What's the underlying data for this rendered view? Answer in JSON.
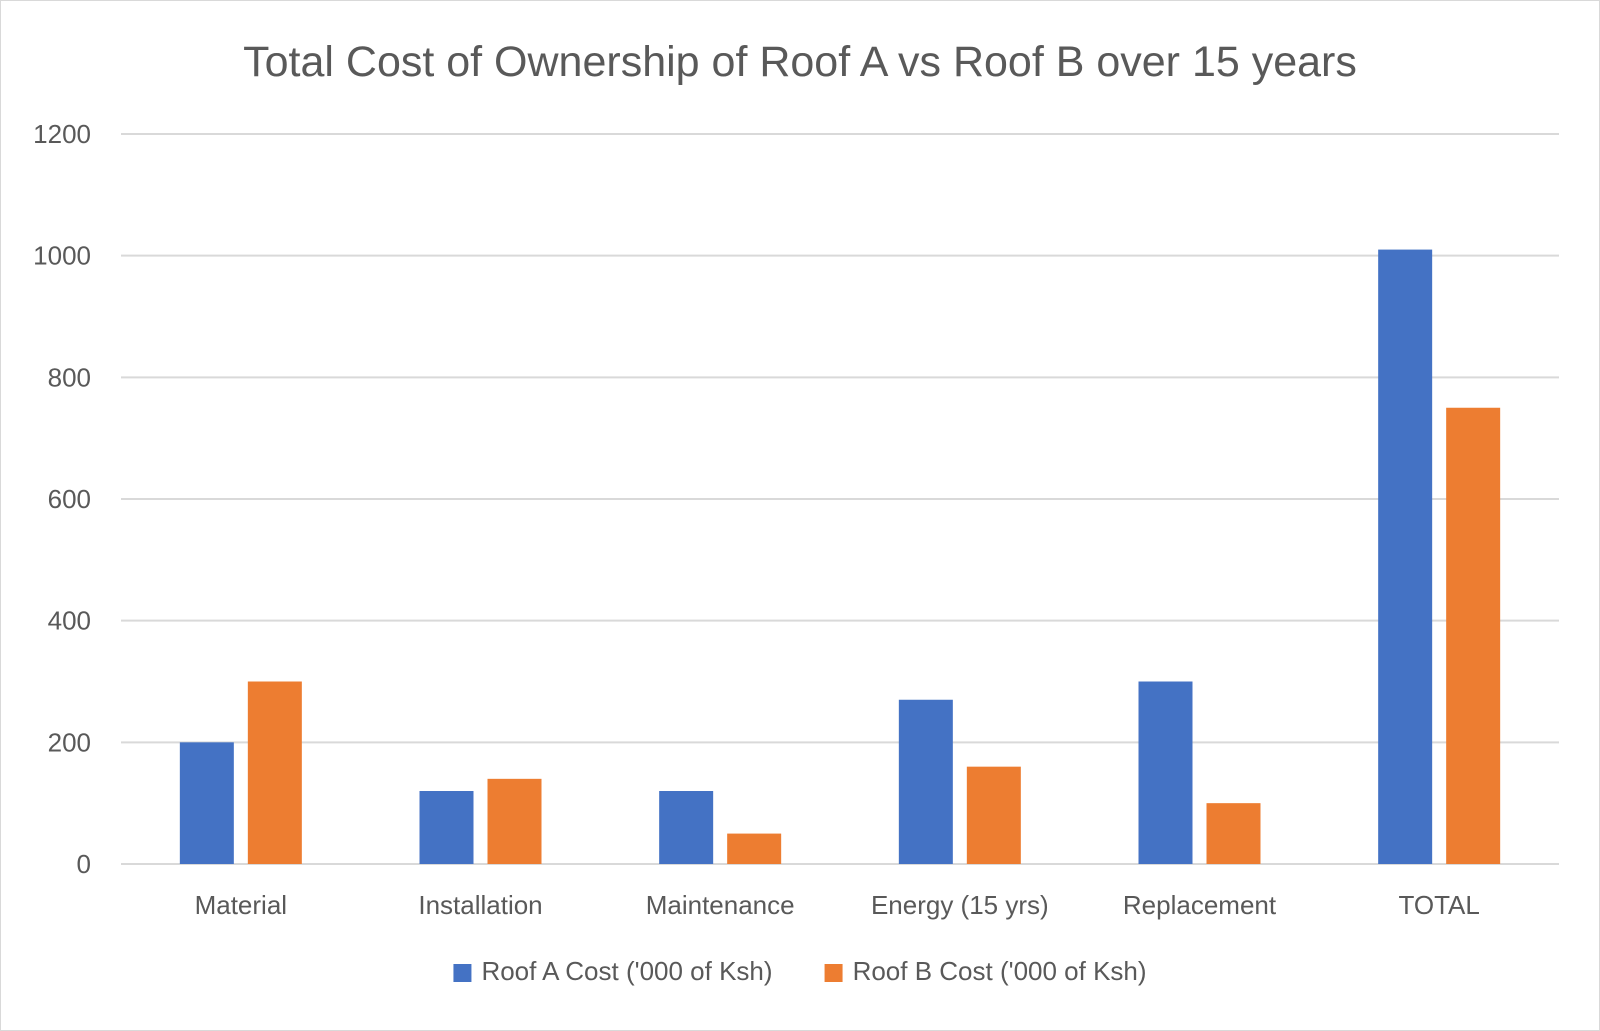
{
  "chart_data": {
    "type": "bar",
    "title": "Total Cost of Ownership of Roof A vs Roof B over 15 years",
    "xlabel": "",
    "ylabel": "",
    "categories": [
      "Material",
      "Installation",
      "Maintenance",
      "Energy (15 yrs)",
      "Replacement",
      "TOTAL"
    ],
    "series": [
      {
        "name": "Roof A Cost ('000 of Ksh)",
        "color": "#4472C4",
        "values": [
          200,
          120,
          120,
          270,
          300,
          1010
        ]
      },
      {
        "name": "Roof B Cost ('000 of Ksh)",
        "color": "#ED7D31",
        "values": [
          300,
          140,
          50,
          160,
          100,
          750
        ]
      }
    ],
    "ylim": [
      0,
      1200
    ],
    "yticks": [
      "0",
      "200",
      "400",
      "600",
      "800",
      "1000",
      "1200"
    ],
    "grid": true,
    "legend_position": "bottom"
  }
}
